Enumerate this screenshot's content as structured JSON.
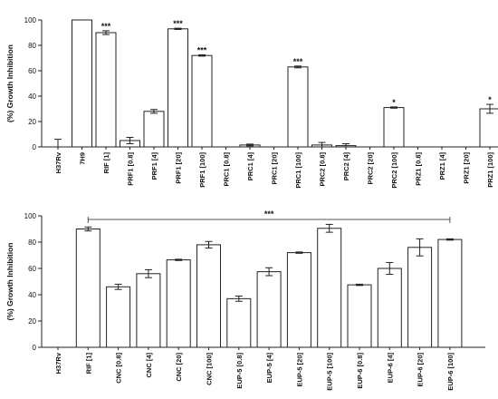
{
  "chart_data": [
    {
      "type": "bar",
      "ylabel": "(%) Growth Inhibition",
      "xlabel": "",
      "ylim": [
        0,
        100
      ],
      "yticks": [
        "0",
        "20",
        "40",
        "60",
        "80",
        "100"
      ],
      "categories": [
        "H37Rv",
        "7H9",
        "RIF [1]",
        "PRF1 [0.8]",
        "PRF1 [4]",
        "PRF1 [20]",
        "PRF1 [100]",
        "PRC1 [0.8]",
        "PRC1 [4]",
        "PRC1 [20]",
        "PRC1 [100]",
        "PRC2 [0.8]",
        "PRC2 [4]",
        "PRC2 [20]",
        "PRC2 [100]",
        "PRZ1 [0.8]",
        "PRZ1 [4]",
        "PRZ1 [20]",
        "PRZ1 [100]"
      ],
      "values": [
        0,
        100,
        90,
        5,
        28,
        93,
        72,
        0,
        1.5,
        0,
        63,
        1.5,
        1,
        0,
        31,
        0,
        0,
        0,
        30
      ],
      "errors": [
        6,
        0,
        1.5,
        2.5,
        1.5,
        0.5,
        0.5,
        0,
        0.7,
        0,
        0.7,
        2,
        1.5,
        0,
        0.5,
        0,
        0,
        0,
        3.5
      ],
      "significance": [
        "",
        "",
        "***",
        "",
        "",
        "***",
        "***",
        "",
        "",
        "",
        "***",
        "",
        "",
        "",
        "*",
        "",
        "",
        "",
        "*"
      ],
      "grid": false
    },
    {
      "type": "bar",
      "ylabel": "(%) Growth Inhibition",
      "xlabel": "",
      "ylim": [
        0,
        100
      ],
      "yticks": [
        "0",
        "20",
        "40",
        "60",
        "80",
        "100"
      ],
      "categories": [
        "H37Rv",
        "RIF [1]",
        "CNC [0.8]",
        "CNC [4]",
        "CNC [20]",
        "CNC [100]",
        "EUP-5 [0.8]",
        "EUP-5 [4]",
        "EUP-5 [20]",
        "EUP-5 [100]",
        "EUP-6 [0.8]",
        "EUP-6 [4]",
        "EUP-6 [20]",
        "EUP-6 [100]"
      ],
      "values": [
        0,
        90,
        46,
        56,
        66.5,
        78,
        37,
        57.5,
        72,
        90.5,
        47.5,
        60,
        76,
        82
      ],
      "errors": [
        0,
        1.5,
        2,
        3,
        0.5,
        2.5,
        2,
        3,
        0.5,
        3,
        0.5,
        4.5,
        6.5,
        0.5
      ],
      "bracket_label": "***",
      "grid": false
    }
  ]
}
